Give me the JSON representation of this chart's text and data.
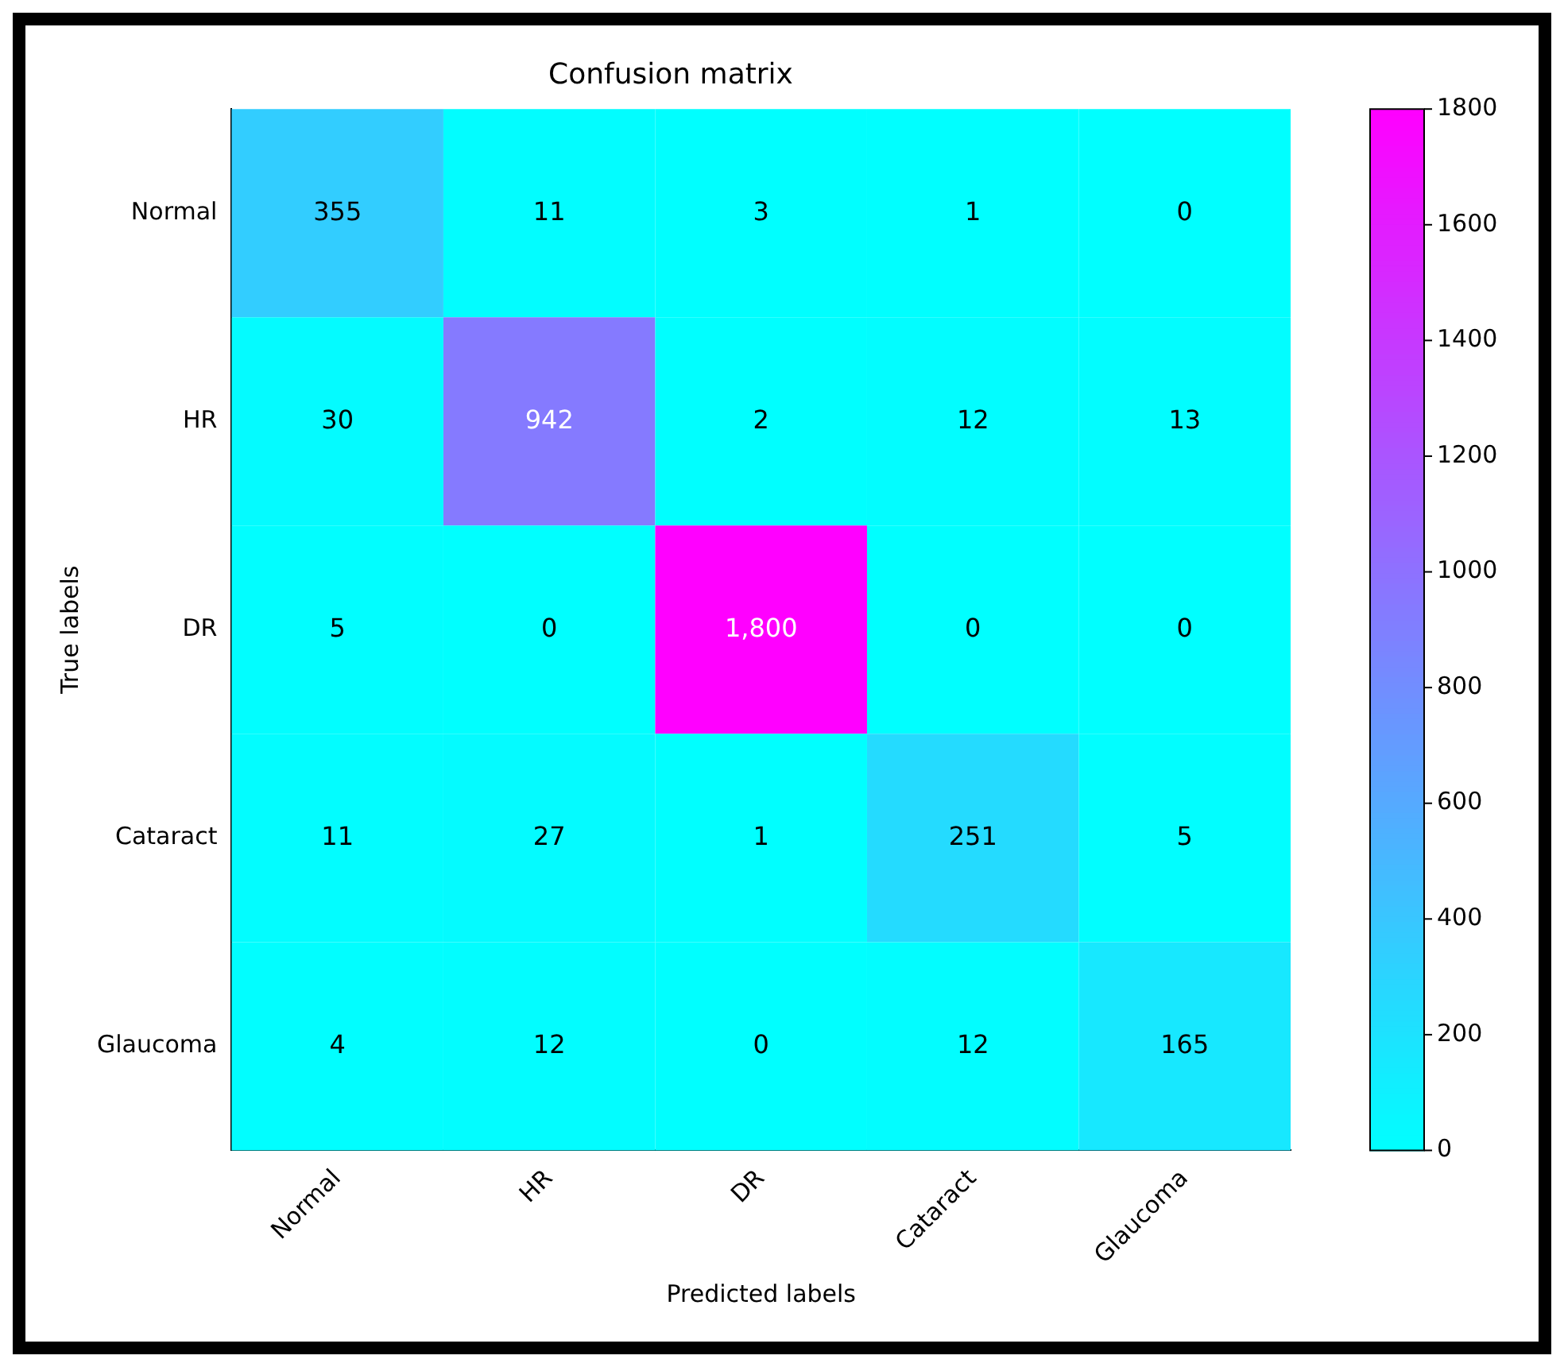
{
  "chart_data": {
    "type": "heatmap",
    "title": "Confusion matrix",
    "xlabel": "Predicted labels",
    "ylabel": "True labels",
    "categories": [
      "Normal",
      "HR",
      "DR",
      "Cataract",
      "Glaucoma"
    ],
    "y_categories": [
      "Normal",
      "HR",
      "DR",
      "Cataract",
      "Glaucoma"
    ],
    "cells": [
      [
        355,
        11,
        3,
        1,
        0
      ],
      [
        30,
        942,
        2,
        12,
        13
      ],
      [
        5,
        0,
        1800,
        0,
        0
      ],
      [
        11,
        27,
        1,
        251,
        5
      ],
      [
        4,
        12,
        0,
        12,
        165
      ]
    ],
    "cell_labels": [
      [
        "355",
        "11",
        "3",
        "1",
        "0"
      ],
      [
        "30",
        "942",
        "2",
        "12",
        "13"
      ],
      [
        "5",
        "0",
        "1,800",
        "0",
        "0"
      ],
      [
        "11",
        "27",
        "1",
        "251",
        "5"
      ],
      [
        "4",
        "12",
        "0",
        "12",
        "165"
      ]
    ],
    "clim": [
      0,
      1800
    ],
    "cticks": [
      0,
      200,
      400,
      600,
      800,
      1000,
      1200,
      1400,
      1600,
      1800
    ]
  }
}
